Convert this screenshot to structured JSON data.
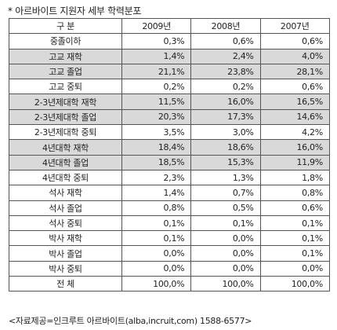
{
  "title": "* 아르바이트 지원자 세부 학력분포",
  "headers": [
    "구 분",
    "2009년",
    "2008년",
    "2007년"
  ],
  "rows": [
    {
      "label": "중졸이하",
      "values": [
        "0,3%",
        "0,6%",
        "0,6%"
      ],
      "shaded": false
    },
    {
      "label": "고교 재학",
      "values": [
        "1,4%",
        "2,4%",
        "4,0%"
      ],
      "shaded": true
    },
    {
      "label": "고교 졸업",
      "values": [
        "21,1%",
        "23,8%",
        "28,1%"
      ],
      "shaded": true
    },
    {
      "label": "고교 중퇴",
      "values": [
        "0,2%",
        "0,2%",
        "0,6%"
      ],
      "shaded": false
    },
    {
      "label": "2-3년제대학 재학",
      "values": [
        "11,5%",
        "16,0%",
        "16,5%"
      ],
      "shaded": true
    },
    {
      "label": "2-3년제대학 졸업",
      "values": [
        "20,3%",
        "17,3%",
        "14,6%"
      ],
      "shaded": true
    },
    {
      "label": "2-3년제대학 중퇴",
      "values": [
        "3,5%",
        "3,0%",
        "4,2%"
      ],
      "shaded": false
    },
    {
      "label": "4년대학 재학",
      "values": [
        "18,4%",
        "18,6%",
        "16,0%"
      ],
      "shaded": true
    },
    {
      "label": "4년대학 졸업",
      "values": [
        "18,5%",
        "15,3%",
        "11,9%"
      ],
      "shaded": true
    },
    {
      "label": "4년대학 중퇴",
      "values": [
        "2,3%",
        "1,3%",
        "1,8%"
      ],
      "shaded": false
    },
    {
      "label": "석사 재학",
      "values": [
        "1,4%",
        "0,7%",
        "0,8%"
      ],
      "shaded": false
    },
    {
      "label": "석사 졸업",
      "values": [
        "0,8%",
        "0,5%",
        "0,6%"
      ],
      "shaded": false
    },
    {
      "label": "석사 중퇴",
      "values": [
        "0,1%",
        "0,1%",
        "0,1%"
      ],
      "shaded": false
    },
    {
      "label": "박사 재학",
      "values": [
        "0,1%",
        "0,0%",
        "0,1%"
      ],
      "shaded": false
    },
    {
      "label": "박사 졸업",
      "values": [
        "0,0%",
        "0,0%",
        "0,1%"
      ],
      "shaded": false
    },
    {
      "label": "박사 중퇴",
      "values": [
        "0,0%",
        "0,0%",
        "0,0%"
      ],
      "shaded": false
    },
    {
      "label": "전 체",
      "values": [
        "100,0%",
        "100,0%",
        "100,0%"
      ],
      "shaded": false
    }
  ],
  "source": "<자료제공=인크루트 아르바이트(alba,incruit,com) 1588-6577>",
  "colors": {
    "shade": "#d9d9d9",
    "border": "#555555"
  }
}
